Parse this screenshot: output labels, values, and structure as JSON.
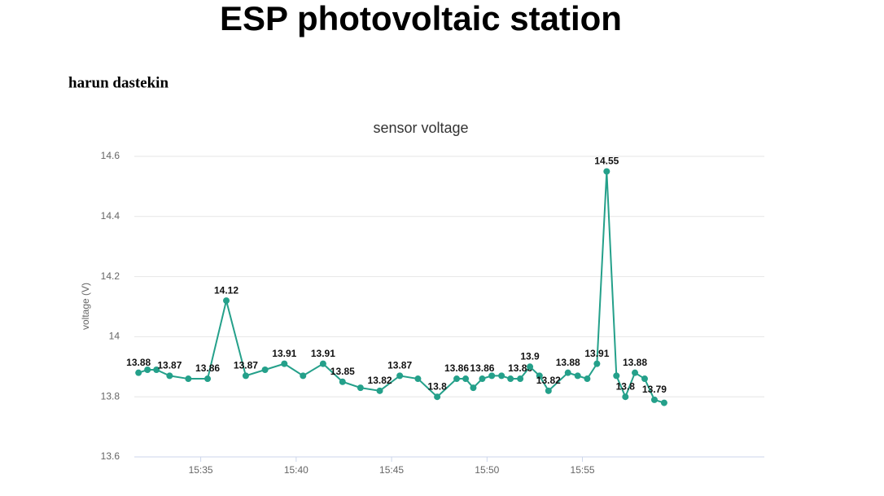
{
  "header": {
    "title": "ESP photovoltaic station",
    "author": "harun dastekin"
  },
  "chart_data": {
    "type": "line",
    "title": "sensor voltage",
    "y_label": "voltage (V)",
    "color": "#24a08a",
    "grid": true,
    "x": [
      931.74,
      932.21,
      932.68,
      933.37,
      934.35,
      935.36,
      936.34,
      937.36,
      938.37,
      939.38,
      940.36,
      941.41,
      942.43,
      943.37,
      944.38,
      945.43,
      946.38,
      947.39,
      948.41,
      948.88,
      949.28,
      949.75,
      950.25,
      950.76,
      951.23,
      951.74,
      952.25,
      952.75,
      953.22,
      954.24,
      954.75,
      955.25,
      955.76,
      956.27,
      956.78,
      957.25,
      957.75,
      958.26,
      958.77,
      959.28
    ],
    "values": [
      13.88,
      13.89,
      13.89,
      13.87,
      13.86,
      13.86,
      14.12,
      13.87,
      13.89,
      13.91,
      13.87,
      13.91,
      13.85,
      13.83,
      13.82,
      13.87,
      13.86,
      13.8,
      13.86,
      13.86,
      13.83,
      13.86,
      13.87,
      13.87,
      13.86,
      13.86,
      13.9,
      13.87,
      13.82,
      13.88,
      13.87,
      13.86,
      13.91,
      14.55,
      13.87,
      13.8,
      13.88,
      13.86,
      13.79,
      13.78
    ],
    "value_labels": [
      "13.88",
      null,
      null,
      "13.87",
      null,
      "13.86",
      "14.12",
      "13.87",
      null,
      "13.91",
      null,
      "13.91",
      "13.85",
      null,
      "13.82",
      "13.87",
      null,
      "13.8",
      "13.86",
      null,
      null,
      "13.86",
      null,
      null,
      null,
      "13.86",
      "13.9",
      null,
      "13.82",
      "13.88",
      null,
      null,
      "13.91",
      "14.55",
      null,
      "13.8",
      "13.88",
      null,
      "13.79",
      null
    ],
    "xlim": [
      931.52,
      964.53
    ],
    "xticks": [
      {
        "value": 935,
        "label": "15:35"
      },
      {
        "value": 940,
        "label": "15:40"
      },
      {
        "value": 945,
        "label": "15:45"
      },
      {
        "value": 950,
        "label": "15:50"
      },
      {
        "value": 955,
        "label": "15:55"
      }
    ],
    "ylim": [
      13.6,
      14.6
    ],
    "yticks": [
      13.6,
      13.8,
      14,
      14.2,
      14.4,
      14.6
    ]
  }
}
